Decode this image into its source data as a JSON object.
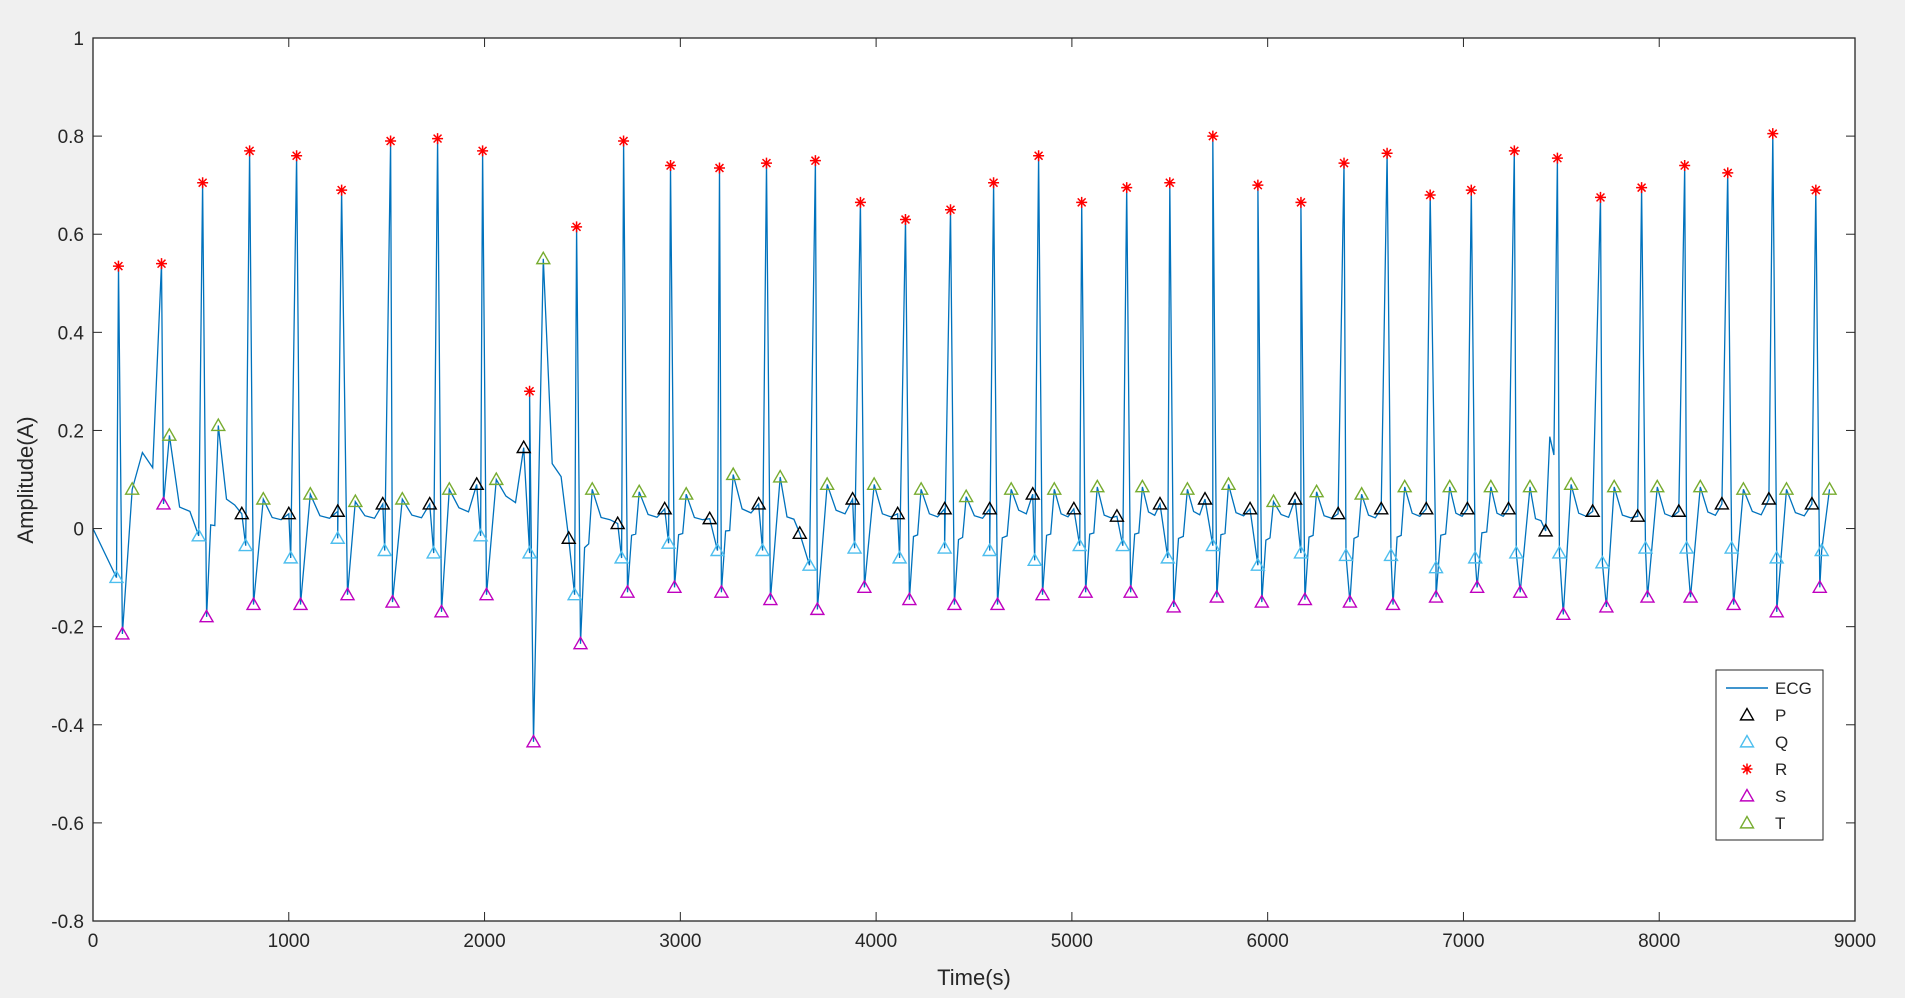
{
  "chart_data": {
    "type": "line",
    "title": "",
    "xlabel": "Time(s)",
    "ylabel": "Amplitude(A)",
    "xlim": [
      0,
      9000
    ],
    "ylim": [
      -0.8,
      1
    ],
    "xticks": [
      0,
      1000,
      2000,
      3000,
      4000,
      5000,
      6000,
      7000,
      8000,
      9000
    ],
    "yticks": [
      -0.8,
      -0.6,
      -0.4,
      -0.2,
      0,
      0.2,
      0.4,
      0.6,
      0.8,
      1
    ],
    "grid": false,
    "legend_position": "bottom-right",
    "legend": [
      "ECG",
      "P",
      "Q",
      "R",
      "S",
      "T"
    ],
    "series": [
      {
        "name": "ECG",
        "color": "#0072BD",
        "marker": "line",
        "x": [],
        "y": []
      },
      {
        "name": "P",
        "color": "#000000",
        "marker": "triangle",
        "x": [
          760,
          1000,
          1250,
          1480,
          1720,
          1960,
          2200,
          2430,
          2680,
          2920,
          3150,
          3400,
          3610,
          3880,
          4110,
          4350,
          4580,
          4800,
          5010,
          5230,
          5450,
          5680,
          5910,
          6140,
          6360,
          6580,
          6810,
          7020,
          7230,
          7420,
          7660,
          7890,
          8100,
          8320,
          8560,
          8780
        ],
        "y": [
          0.03,
          0.03,
          0.035,
          0.05,
          0.05,
          0.09,
          0.165,
          -0.02,
          0.01,
          0.04,
          0.02,
          0.05,
          -0.01,
          0.06,
          0.03,
          0.04,
          0.04,
          0.07,
          0.04,
          0.025,
          0.05,
          0.06,
          0.04,
          0.06,
          0.03,
          0.04,
          0.04,
          0.04,
          0.04,
          -0.005,
          0.035,
          0.025,
          0.035,
          0.05,
          0.06,
          0.05
        ]
      },
      {
        "name": "Q",
        "color": "#4DBEEE",
        "marker": "triangle",
        "x": [
          120,
          540,
          780,
          1010,
          1250,
          1490,
          1740,
          1980,
          2230,
          2460,
          2700,
          2940,
          3190,
          3420,
          3660,
          3890,
          4120,
          4350,
          4580,
          4810,
          5040,
          5260,
          5490,
          5720,
          5950,
          6170,
          6400,
          6630,
          6860,
          7060,
          7270,
          7490,
          7710,
          7930,
          8140,
          8370,
          8600,
          8830
        ],
        "y": [
          -0.1,
          -0.015,
          -0.035,
          -0.06,
          -0.02,
          -0.045,
          -0.05,
          -0.015,
          -0.05,
          -0.135,
          -0.06,
          -0.03,
          -0.045,
          -0.045,
          -0.075,
          -0.04,
          -0.06,
          -0.04,
          -0.045,
          -0.065,
          -0.035,
          -0.035,
          -0.06,
          -0.035,
          -0.075,
          -0.05,
          -0.055,
          -0.055,
          -0.08,
          -0.06,
          -0.05,
          -0.05,
          -0.07,
          -0.04,
          -0.04,
          -0.04,
          -0.06,
          -0.045
        ]
      },
      {
        "name": "R",
        "color": "#FF0000",
        "marker": "star",
        "x": [
          130,
          350,
          560,
          800,
          1040,
          1270,
          1520,
          1760,
          1990,
          2230,
          2470,
          2710,
          2950,
          3200,
          3440,
          3690,
          3920,
          4150,
          4380,
          4600,
          4830,
          5050,
          5280,
          5500,
          5720,
          5950,
          6170,
          6390,
          6610,
          6830,
          7040,
          7260,
          7480,
          7700,
          7910,
          8130,
          8350,
          8580,
          8800
        ],
        "y": [
          0.535,
          0.54,
          0.705,
          0.77,
          0.76,
          0.69,
          0.79,
          0.795,
          0.77,
          0.28,
          0.615,
          0.79,
          0.74,
          0.735,
          0.745,
          0.75,
          0.665,
          0.63,
          0.65,
          0.705,
          0.76,
          0.665,
          0.695,
          0.705,
          0.8,
          0.7,
          0.665,
          0.745,
          0.765,
          0.68,
          0.69,
          0.77,
          0.755,
          0.675,
          0.695,
          0.74,
          0.725,
          0.805,
          0.69
        ]
      },
      {
        "name": "S",
        "color": "#BF00BF",
        "marker": "triangle",
        "x": [
          150,
          360,
          580,
          820,
          1060,
          1300,
          1530,
          1780,
          2010,
          2250,
          2490,
          2730,
          2970,
          3210,
          3460,
          3700,
          3940,
          4170,
          4400,
          4620,
          4850,
          5070,
          5300,
          5520,
          5740,
          5970,
          6190,
          6420,
          6640,
          6860,
          7070,
          7290,
          7510,
          7730,
          7940,
          8160,
          8380,
          8600,
          8820
        ],
        "y": [
          -0.215,
          0.05,
          -0.18,
          -0.155,
          -0.155,
          -0.135,
          -0.15,
          -0.17,
          -0.135,
          -0.435,
          -0.235,
          -0.13,
          -0.12,
          -0.13,
          -0.145,
          -0.165,
          -0.12,
          -0.145,
          -0.155,
          -0.155,
          -0.135,
          -0.13,
          -0.13,
          -0.16,
          -0.14,
          -0.15,
          -0.145,
          -0.15,
          -0.155,
          -0.14,
          -0.12,
          -0.13,
          -0.175,
          -0.16,
          -0.14,
          -0.14,
          -0.155,
          -0.17,
          -0.12
        ]
      },
      {
        "name": "T",
        "color": "#77AC30",
        "marker": "triangle",
        "x": [
          200,
          390,
          640,
          870,
          1110,
          1340,
          1580,
          1820,
          2060,
          2300,
          2550,
          2790,
          3030,
          3270,
          3510,
          3750,
          3990,
          4230,
          4460,
          4690,
          4910,
          5130,
          5360,
          5590,
          5800,
          6030,
          6250,
          6480,
          6700,
          6930,
          7140,
          7340,
          7550,
          7770,
          7990,
          8210,
          8430,
          8650,
          8870
        ],
        "y": [
          0.08,
          0.19,
          0.21,
          0.06,
          0.07,
          0.055,
          0.06,
          0.08,
          0.1,
          0.55,
          0.08,
          0.075,
          0.07,
          0.11,
          0.105,
          0.09,
          0.09,
          0.08,
          0.065,
          0.08,
          0.08,
          0.085,
          0.085,
          0.08,
          0.09,
          0.055,
          0.075,
          0.07,
          0.085,
          0.085,
          0.085,
          0.085,
          0.09,
          0.085,
          0.085,
          0.085,
          0.08,
          0.08,
          0.08
        ]
      }
    ]
  }
}
